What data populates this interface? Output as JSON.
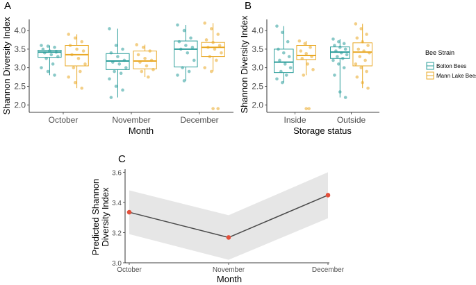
{
  "colors": {
    "bolton": "#2a9d9a",
    "mann": "#e9a825",
    "line": "#4a4a4a",
    "point": "#e3503b",
    "ribbon": "#e6e6e6"
  },
  "legend": {
    "title": "Bee Strain",
    "items": [
      "Bolton Bees",
      "Mann Lake Bees"
    ]
  },
  "chart_data": [
    {
      "panel": "A",
      "type": "box",
      "xlabel": "Month",
      "ylabel": "Shannon Diversity Index",
      "categories": [
        "October",
        "November",
        "December"
      ],
      "ylim": [
        1.8,
        4.3
      ],
      "yticks": [
        2.0,
        2.5,
        3.0,
        3.5,
        4.0
      ],
      "series": [
        {
          "name": "Bolton Bees",
          "boxes": [
            {
              "min": 2.8,
              "q1": 3.28,
              "median": 3.42,
              "q3": 3.47,
              "max": 3.6,
              "outliers": []
            },
            {
              "min": 2.2,
              "q1": 2.95,
              "median": 3.18,
              "q3": 3.38,
              "max": 4.05,
              "outliers": []
            },
            {
              "min": 2.65,
              "q1": 3.02,
              "median": 3.5,
              "q3": 3.72,
              "max": 4.15,
              "outliers": []
            }
          ],
          "points": [
            [
              3.6,
              3.58,
              3.55,
              3.5,
              3.45,
              3.42,
              3.4,
              3.35,
              3.3,
              3.25,
              3.1,
              3.0,
              2.9,
              2.8
            ],
            [
              4.05,
              3.6,
              3.5,
              3.4,
              3.3,
              3.2,
              3.15,
              3.1,
              3.0,
              2.9,
              2.85,
              2.7,
              2.5,
              2.4,
              2.2
            ],
            [
              4.15,
              4.0,
              3.8,
              3.7,
              3.6,
              3.55,
              3.5,
              3.4,
              3.2,
              3.0,
              2.9,
              2.8,
              2.65
            ]
          ]
        },
        {
          "name": "Mann Lake Bees",
          "boxes": [
            {
              "min": 2.45,
              "q1": 3.05,
              "median": 3.35,
              "q3": 3.6,
              "max": 3.9,
              "outliers": []
            },
            {
              "min": 2.75,
              "q1": 2.97,
              "median": 3.18,
              "q3": 3.45,
              "max": 3.62,
              "outliers": []
            },
            {
              "min": 2.9,
              "q1": 3.3,
              "median": 3.55,
              "q3": 3.68,
              "max": 4.2,
              "outliers": [
                1.9
              ]
            }
          ],
          "points": [
            [
              3.9,
              3.8,
              3.7,
              3.6,
              3.5,
              3.45,
              3.35,
              3.25,
              3.1,
              3.0,
              2.9,
              2.75,
              2.6,
              2.45
            ],
            [
              3.62,
              3.55,
              3.45,
              3.35,
              3.25,
              3.2,
              3.15,
              3.05,
              2.95,
              2.9,
              2.75
            ],
            [
              4.2,
              4.05,
              3.9,
              3.75,
              3.68,
              3.6,
              3.55,
              3.5,
              3.4,
              3.3,
              3.2,
              3.0,
              2.9,
              1.9
            ]
          ]
        }
      ]
    },
    {
      "panel": "B",
      "type": "box",
      "xlabel": "Storage status",
      "ylabel": "Shannon Diversity Index",
      "categories": [
        "Inside",
        "Outside"
      ],
      "ylim": [
        1.8,
        4.3
      ],
      "yticks": [
        2.0,
        2.5,
        3.0,
        3.5,
        4.0
      ],
      "series": [
        {
          "name": "Bolton Bees",
          "boxes": [
            {
              "min": 2.6,
              "q1": 2.87,
              "median": 3.15,
              "q3": 3.5,
              "max": 4.12,
              "outliers": []
            },
            {
              "min": 2.2,
              "q1": 3.25,
              "median": 3.42,
              "q3": 3.56,
              "max": 3.77,
              "outliers": []
            }
          ],
          "points": [
            [
              4.12,
              3.95,
              3.7,
              3.5,
              3.4,
              3.3,
              3.2,
              3.1,
              3.0,
              2.9,
              2.8,
              2.7,
              2.6
            ],
            [
              3.77,
              3.7,
              3.65,
              3.6,
              3.55,
              3.5,
              3.45,
              3.4,
              3.35,
              3.3,
              3.25,
              3.2,
              3.1,
              3.0,
              2.8,
              2.35,
              2.2
            ]
          ]
        },
        {
          "name": "Mann Lake Bees",
          "boxes": [
            {
              "min": 2.8,
              "q1": 3.22,
              "median": 3.33,
              "q3": 3.6,
              "max": 3.72,
              "outliers": [
                1.9
              ]
            },
            {
              "min": 2.45,
              "q1": 3.05,
              "median": 3.42,
              "q3": 3.67,
              "max": 4.18,
              "outliers": []
            }
          ],
          "points": [
            [
              3.72,
              3.65,
              3.55,
              3.45,
              3.38,
              3.3,
              3.25,
              3.1,
              2.95,
              2.8,
              1.9
            ],
            [
              4.18,
              4.05,
              3.9,
              3.8,
              3.7,
              3.6,
              3.5,
              3.45,
              3.4,
              3.3,
              3.2,
              3.1,
              3.0,
              2.9,
              2.75,
              2.6,
              2.45
            ]
          ]
        }
      ]
    },
    {
      "panel": "C",
      "type": "line",
      "xlabel": "Month",
      "ylabel_lines": [
        "Predicted Shannon",
        "Diversity Index"
      ],
      "categories": [
        "October",
        "November",
        "December"
      ],
      "values": [
        3.335,
        3.168,
        3.448
      ],
      "ci_lower": [
        3.19,
        3.02,
        3.295
      ],
      "ci_upper": [
        3.48,
        3.315,
        3.6
      ],
      "ylim": [
        3.0,
        3.62
      ],
      "yticks": [
        3.0,
        3.2,
        3.4,
        3.6
      ]
    }
  ]
}
